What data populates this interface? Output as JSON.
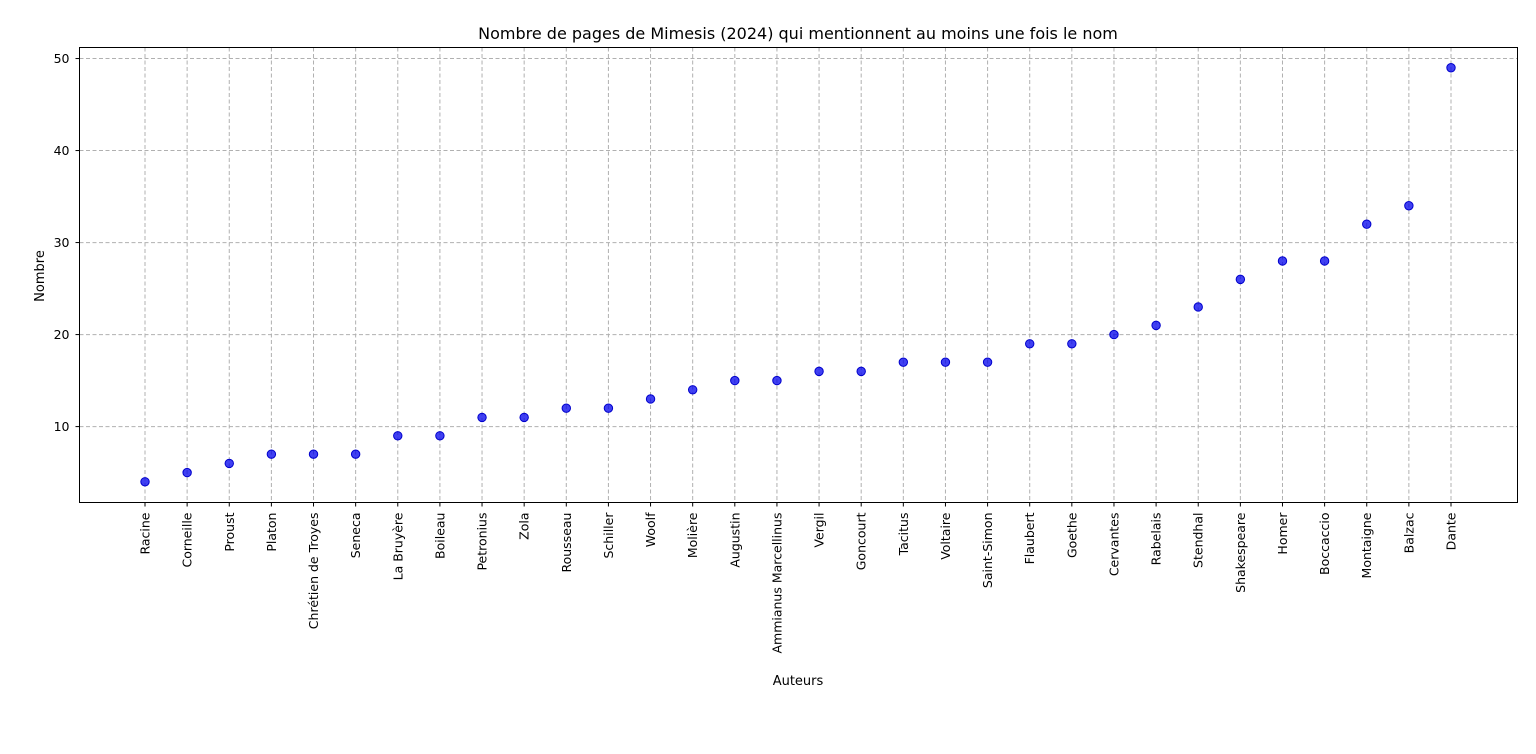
{
  "chart_data": {
    "type": "scatter",
    "title": "Nombre de pages de Mimesis (2024) qui mentionnent au moins une fois le nom",
    "xlabel": "Auteurs",
    "ylabel": "Nombre",
    "ylim": [
      1.75,
      51.2
    ],
    "yticks": [
      10,
      20,
      30,
      40,
      50
    ],
    "grid": true,
    "categories": [
      "Racine",
      "Corneille",
      "Proust",
      "Platon",
      "Chrétien de Troyes",
      "Seneca",
      "La Bruyère",
      "Boileau",
      "Petronius",
      "Zola",
      "Rousseau",
      "Schiller",
      "Woolf",
      "Molière",
      "Augustin",
      "Ammianus Marcellinus",
      "Vergil",
      "Goncourt",
      "Tacitus",
      "Voltaire",
      "Saint-Simon",
      "Flaubert",
      "Goethe",
      "Cervantes",
      "Rabelais",
      "Stendhal",
      "Shakespeare",
      "Homer",
      "Boccaccio",
      "Montaigne",
      "Balzac",
      "Dante"
    ],
    "values": [
      4,
      5,
      6,
      7,
      7,
      7,
      9,
      9,
      11,
      11,
      12,
      12,
      13,
      14,
      15,
      15,
      16,
      16,
      17,
      17,
      17,
      19,
      19,
      20,
      21,
      23,
      26,
      28,
      28,
      32,
      34,
      49
    ],
    "color": "#0000ff"
  }
}
